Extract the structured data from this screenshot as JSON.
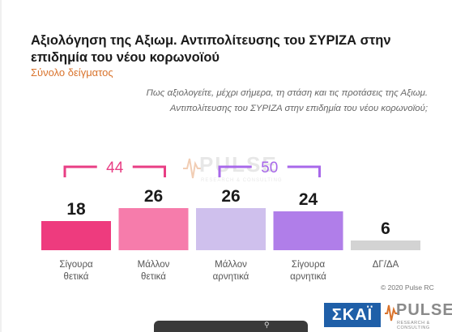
{
  "header": {
    "title": "Αξιολόγηση της Αξιωμ. Αντιπολίτευσης του ΣΥΡΙΖΑ στην επιδημία του νέου κορωνοϊού",
    "subtitle": "Σύνολο δείγματος",
    "question": "Πως αξιολογείτε, μέχρι σήμερα, τη στάση και τις προτάσεις της Αξιωμ. Αντιπολίτευσης του ΣΥΡΙΖΑ στην επιδημία του νέου κορωνοϊού;"
  },
  "chart_data": {
    "type": "bar",
    "title": "Αξιολόγηση της Αξιωμ. Αντιπολίτευσης του ΣΥΡΙΖΑ στην επιδημία του νέου κορωνοϊού",
    "subtitle": "Σύνολο δείγματος",
    "categories": [
      [
        "Σίγουρα",
        "θετικά"
      ],
      [
        "Μάλλον",
        "θετικά"
      ],
      [
        "Μάλλον",
        "αρνητικά"
      ],
      [
        "Σίγουρα",
        "αρνητικά"
      ],
      [
        "ΔΓ/ΔΑ"
      ]
    ],
    "values": [
      18,
      26,
      26,
      24,
      6
    ],
    "colors": [
      "#ee3b7e",
      "#f67cab",
      "#cfc0ed",
      "#b07ee9",
      "#d3d3d3"
    ],
    "ylim": [
      0,
      40
    ],
    "grid": false,
    "brackets": [
      {
        "label": "44",
        "from": 0,
        "to": 1,
        "color": "#e83e84"
      },
      {
        "label": "50",
        "from": 2,
        "to": 3,
        "color": "#a868ea"
      }
    ]
  },
  "footer": {
    "copyright": "© 2020 Pulse RC",
    "watermark_name": "PULSE",
    "watermark_sub": "RESEARCH & CONSULTING",
    "channel_logo": "ΣΚΑΪ",
    "brand_name": "PULSE",
    "brand_sub": "RESEARCH & CONSULTING"
  }
}
